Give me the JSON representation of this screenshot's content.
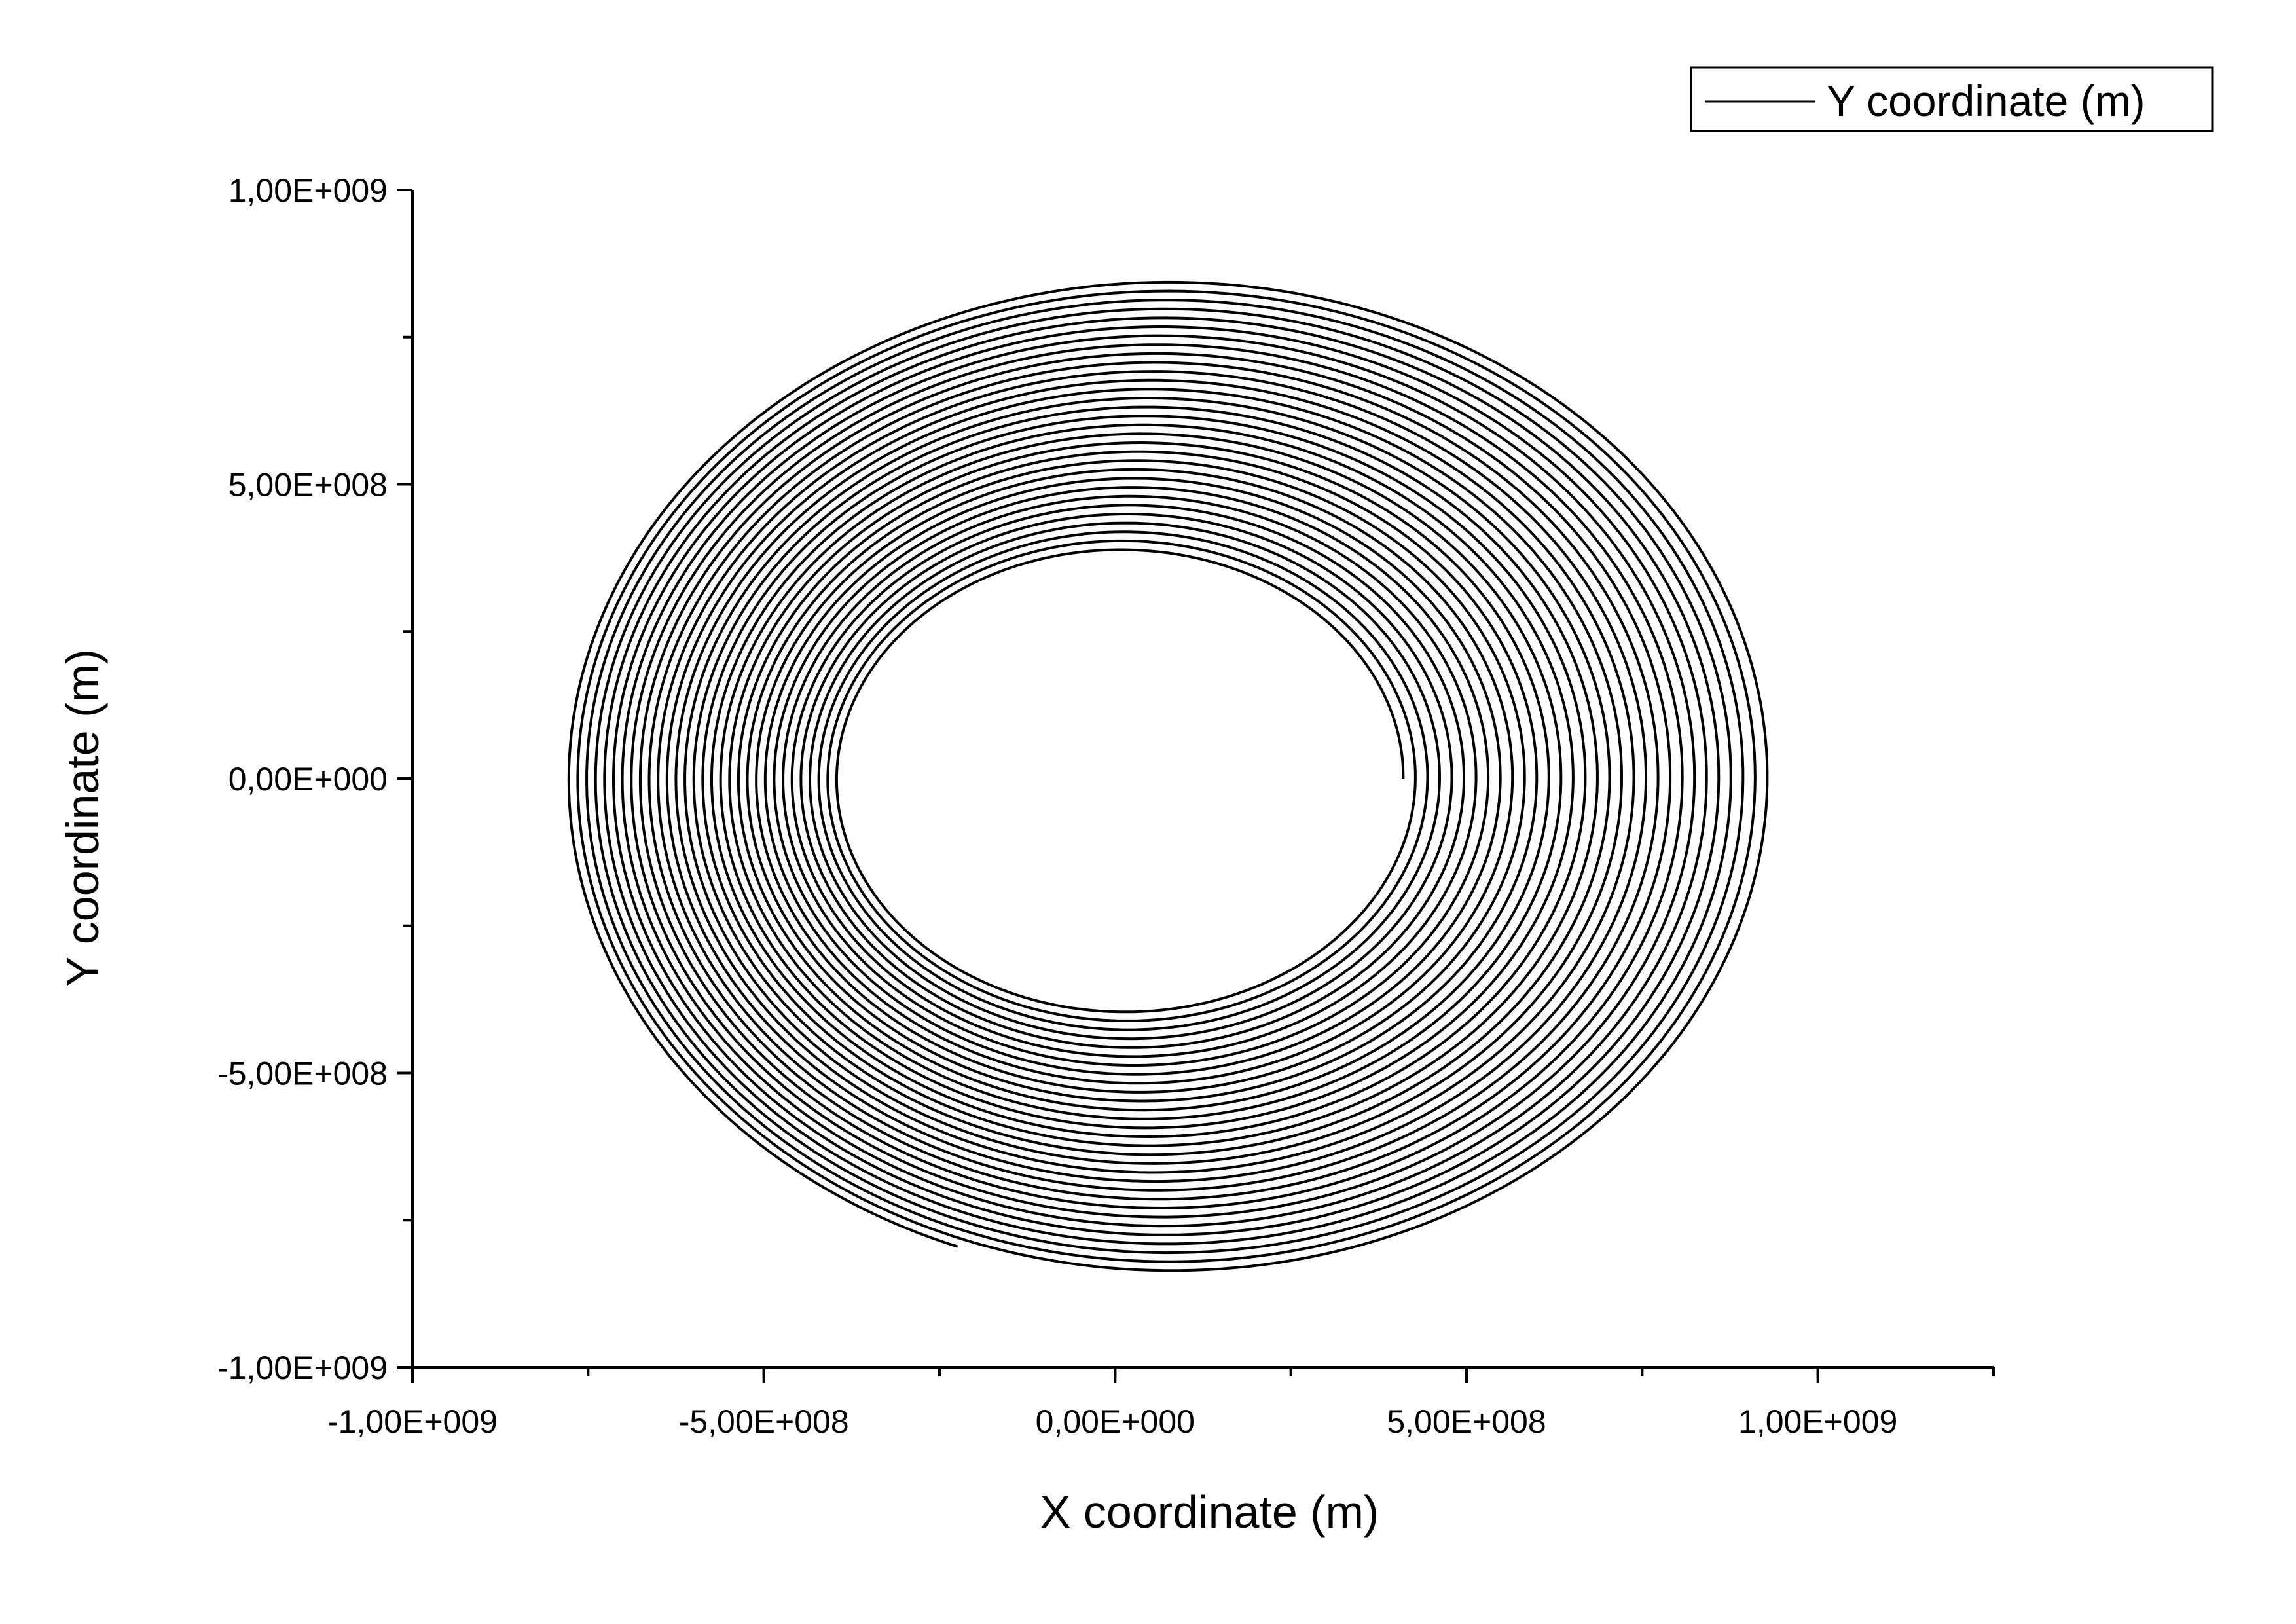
{
  "chart_data": {
    "type": "line",
    "title": "",
    "xlabel": "X coordinate (m)",
    "ylabel": "Y coordinate (m)",
    "xlim": [
      -1000000000.0,
      1250000000.0
    ],
    "ylim": [
      -1000000000.0,
      1000000000.0
    ],
    "x_ticks": [
      {
        "value": -1000000000.0,
        "label": "-1,00E+009"
      },
      {
        "value": -500000000.0,
        "label": "-5,00E+008"
      },
      {
        "value": 0,
        "label": "0,00E+000"
      },
      {
        "value": 500000000.0,
        "label": "5,00E+008"
      },
      {
        "value": 1000000000.0,
        "label": "1,00E+009"
      }
    ],
    "y_ticks": [
      {
        "value": 1000000000.0,
        "label": "1,00E+009"
      },
      {
        "value": 500000000.0,
        "label": "5,00E+008"
      },
      {
        "value": 0,
        "label": "0,00E+000"
      },
      {
        "value": -500000000.0,
        "label": "-5,00E+008"
      },
      {
        "value": -1000000000.0,
        "label": "-1,00E+009"
      }
    ],
    "x_minor_step": 250000000.0,
    "y_minor_step": 250000000.0,
    "grid": false,
    "legend": {
      "position": "top-right",
      "entries": [
        "Y coordinate (m)"
      ]
    },
    "series": [
      {
        "name": "Y coordinate (m)",
        "color": "#000000",
        "shape": "outward spiral",
        "start": {
          "x": 400000000.0,
          "y": 0
        },
        "turns": 30,
        "inner_orbit": {
          "x_min": -390000000.0,
          "x_max": 410000000.0,
          "y_max": 380000000.0,
          "y_min": -390000000.0
        },
        "outer_orbit": {
          "x_min": -780000000.0,
          "x_max": 940000000.0,
          "y_max": 850000000.0,
          "y_min": -850000000.0
        },
        "end": {
          "x": -230000000.0,
          "y": -810000000.0
        }
      }
    ]
  }
}
